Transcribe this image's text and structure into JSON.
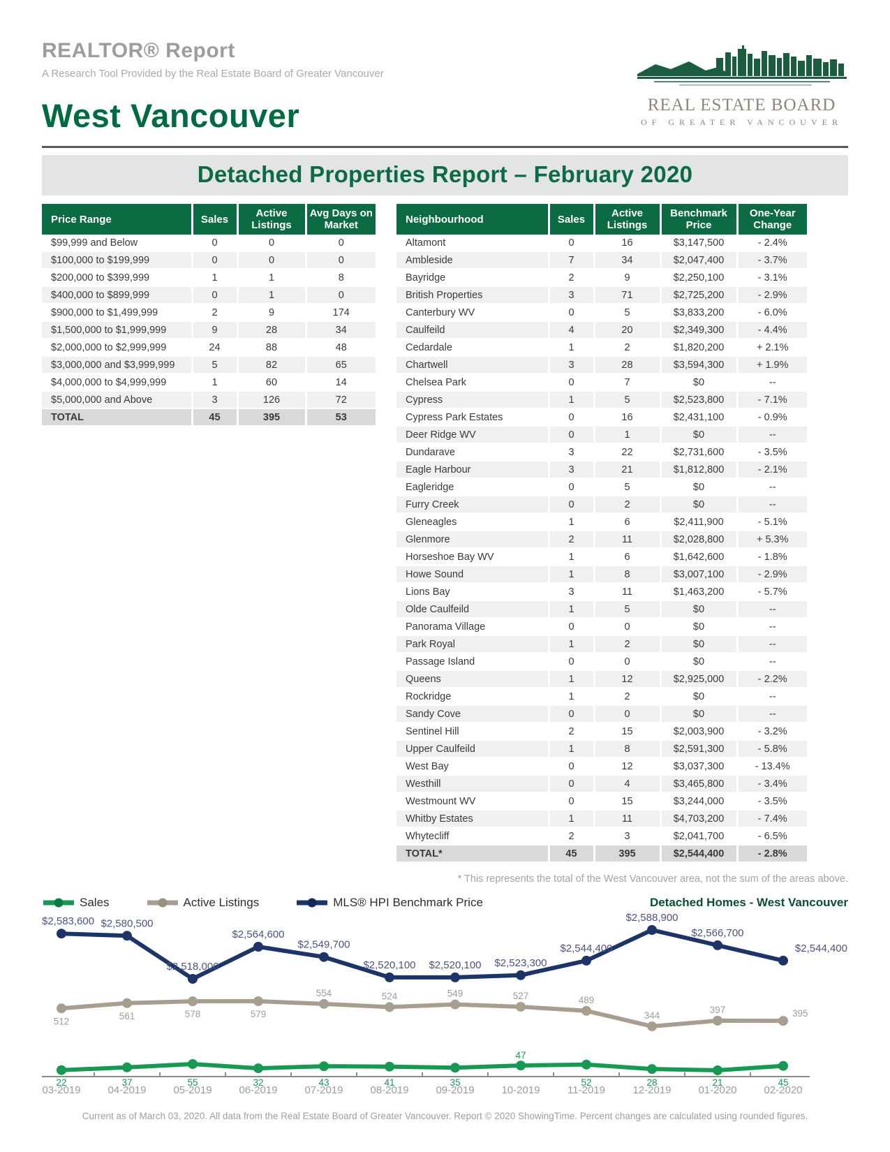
{
  "header": {
    "report_title": "REALTOR® Report",
    "report_subtitle": "A Research Tool Provided by the Real Estate Board of Greater Vancouver",
    "area_title": "West Vancouver",
    "logo": {
      "line1": "REAL ESTATE BOARD",
      "line2": "OF GREATER VANCOUVER"
    }
  },
  "banner": {
    "title": "Detached Properties Report – February 2020"
  },
  "price_table": {
    "columns": [
      "Price Range",
      "Sales",
      "Active Listings",
      "Avg Days on Market"
    ],
    "rows": [
      [
        "$99,999 and Below",
        "0",
        "0",
        "0"
      ],
      [
        "$100,000 to $199,999",
        "0",
        "0",
        "0"
      ],
      [
        "$200,000 to $399,999",
        "1",
        "1",
        "8"
      ],
      [
        "$400,000 to $899,999",
        "0",
        "1",
        "0"
      ],
      [
        "$900,000 to $1,499,999",
        "2",
        "9",
        "174"
      ],
      [
        "$1,500,000 to $1,999,999",
        "9",
        "28",
        "34"
      ],
      [
        "$2,000,000 to $2,999,999",
        "24",
        "88",
        "48"
      ],
      [
        "$3,000,000 and $3,999,999",
        "5",
        "82",
        "65"
      ],
      [
        "$4,000,000 to $4,999,999",
        "1",
        "60",
        "14"
      ],
      [
        "$5,000,000 and Above",
        "3",
        "126",
        "72"
      ]
    ],
    "total": [
      "TOTAL",
      "45",
      "395",
      "53"
    ]
  },
  "neighbourhood_table": {
    "columns": [
      "Neighbourhood",
      "Sales",
      "Active Listings",
      "Benchmark Price",
      "One-Year Change"
    ],
    "rows": [
      [
        "Altamont",
        "0",
        "16",
        "$3,147,500",
        "- 2.4%"
      ],
      [
        "Ambleside",
        "7",
        "34",
        "$2,047,400",
        "- 3.7%"
      ],
      [
        "Bayridge",
        "2",
        "9",
        "$2,250,100",
        "- 3.1%"
      ],
      [
        "British Properties",
        "3",
        "71",
        "$2,725,200",
        "- 2.9%"
      ],
      [
        "Canterbury WV",
        "0",
        "5",
        "$3,833,200",
        "- 6.0%"
      ],
      [
        "Caulfeild",
        "4",
        "20",
        "$2,349,300",
        "- 4.4%"
      ],
      [
        "Cedardale",
        "1",
        "2",
        "$1,820,200",
        "+ 2.1%"
      ],
      [
        "Chartwell",
        "3",
        "28",
        "$3,594,300",
        "+ 1.9%"
      ],
      [
        "Chelsea Park",
        "0",
        "7",
        "$0",
        "--"
      ],
      [
        "Cypress",
        "1",
        "5",
        "$2,523,800",
        "- 7.1%"
      ],
      [
        "Cypress Park Estates",
        "0",
        "16",
        "$2,431,100",
        "- 0.9%"
      ],
      [
        "Deer Ridge WV",
        "0",
        "1",
        "$0",
        "--"
      ],
      [
        "Dundarave",
        "3",
        "22",
        "$2,731,600",
        "- 3.5%"
      ],
      [
        "Eagle Harbour",
        "3",
        "21",
        "$1,812,800",
        "- 2.1%"
      ],
      [
        "Eagleridge",
        "0",
        "5",
        "$0",
        "--"
      ],
      [
        "Furry Creek",
        "0",
        "2",
        "$0",
        "--"
      ],
      [
        "Gleneagles",
        "1",
        "6",
        "$2,411,900",
        "- 5.1%"
      ],
      [
        "Glenmore",
        "2",
        "11",
        "$2,028,800",
        "+ 5.3%"
      ],
      [
        "Horseshoe Bay WV",
        "1",
        "6",
        "$1,642,600",
        "- 1.8%"
      ],
      [
        "Howe Sound",
        "1",
        "8",
        "$3,007,100",
        "- 2.9%"
      ],
      [
        "Lions Bay",
        "3",
        "11",
        "$1,463,200",
        "- 5.7%"
      ],
      [
        "Olde Caulfeild",
        "1",
        "5",
        "$0",
        "--"
      ],
      [
        "Panorama Village",
        "0",
        "0",
        "$0",
        "--"
      ],
      [
        "Park Royal",
        "1",
        "2",
        "$0",
        "--"
      ],
      [
        "Passage Island",
        "0",
        "0",
        "$0",
        "--"
      ],
      [
        "Queens",
        "1",
        "12",
        "$2,925,000",
        "- 2.2%"
      ],
      [
        "Rockridge",
        "1",
        "2",
        "$0",
        "--"
      ],
      [
        "Sandy Cove",
        "0",
        "0",
        "$0",
        "--"
      ],
      [
        "Sentinel Hill",
        "2",
        "15",
        "$2,003,900",
        "- 3.2%"
      ],
      [
        "Upper Caulfeild",
        "1",
        "8",
        "$2,591,300",
        "- 5.8%"
      ],
      [
        "West Bay",
        "0",
        "12",
        "$3,037,300",
        "- 13.4%"
      ],
      [
        "Westhill",
        "0",
        "4",
        "$3,465,800",
        "- 3.4%"
      ],
      [
        "Westmount WV",
        "0",
        "15",
        "$3,244,000",
        "- 3.5%"
      ],
      [
        "Whitby Estates",
        "1",
        "11",
        "$4,703,200",
        "- 7.4%"
      ],
      [
        "Whytecliff",
        "2",
        "3",
        "$2,041,700",
        "- 6.5%"
      ]
    ],
    "total": [
      "TOTAL*",
      "45",
      "395",
      "$2,544,400",
      "- 2.8%"
    ]
  },
  "footnote": "* This represents the total of the West Vancouver area, not the sum of the areas above.",
  "chart_data": {
    "type": "line",
    "title": "Detached Homes - West Vancouver",
    "legend_position": "top-left",
    "grid": false,
    "categories": [
      "03-2019",
      "04-2019",
      "05-2019",
      "06-2019",
      "07-2019",
      "08-2019",
      "09-2019",
      "10-2019",
      "11-2019",
      "12-2019",
      "01-2020",
      "02-2020"
    ],
    "series": [
      {
        "name": "Sales",
        "color": "#179853",
        "label_color": "#179853",
        "values": [
          22,
          37,
          55,
          32,
          43,
          41,
          35,
          47,
          52,
          28,
          21,
          45
        ]
      },
      {
        "name": "Active Listings",
        "color": "#a79e8f",
        "label_color": "#9c9c9c",
        "values": [
          512,
          561,
          578,
          579,
          554,
          524,
          549,
          527,
          489,
          344,
          397,
          395
        ]
      },
      {
        "name": "MLS® HPI Benchmark Price",
        "color": "#1d3469",
        "label_color": "#4a5480",
        "value_prefix": "$",
        "values": [
          2583600,
          2580500,
          2518000,
          2564600,
          2549700,
          2520100,
          2520100,
          2523300,
          2544400,
          2588900,
          2566700,
          2544400
        ]
      }
    ]
  },
  "footer": "Current as of March 03, 2020. All data from the Real Estate Board of Greater Vancouver. Report © 2020 ShowingTime. Percent changes are calculated using rounded figures."
}
